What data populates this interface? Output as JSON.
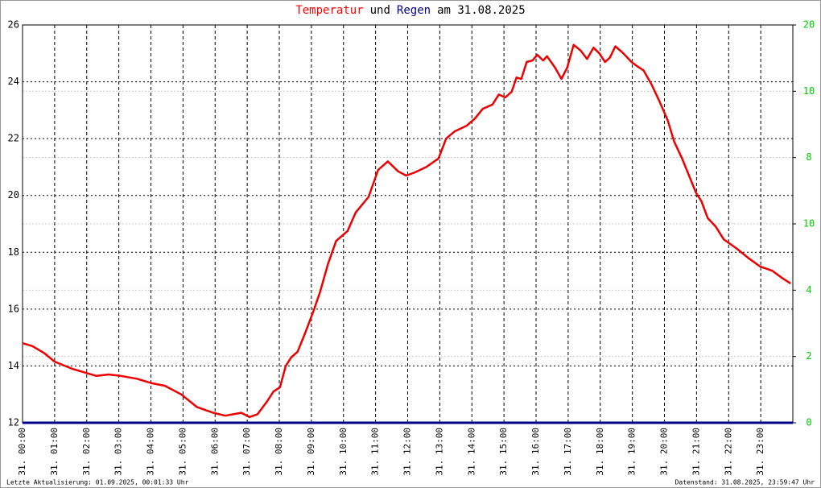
{
  "chart_data": {
    "type": "line",
    "title": [
      {
        "text": "Temperatur",
        "color": "#ff0000"
      },
      {
        "text": "und",
        "color": "#000000"
      },
      {
        "text": "Regen",
        "color": "#00008b"
      },
      {
        "text": "am 31.08.2025",
        "color": "#000000"
      }
    ],
    "xlim": [
      0,
      24
    ],
    "xticks": [
      {
        "value": 0,
        "label": "31. 00:00"
      },
      {
        "value": 1,
        "label": "31. 01:00"
      },
      {
        "value": 2,
        "label": "31. 02:00"
      },
      {
        "value": 3,
        "label": "31. 03:00"
      },
      {
        "value": 4,
        "label": "31. 04:00"
      },
      {
        "value": 5,
        "label": "31. 05:00"
      },
      {
        "value": 6,
        "label": "31. 06:00"
      },
      {
        "value": 7,
        "label": "31. 07:00"
      },
      {
        "value": 8,
        "label": "31. 08:00"
      },
      {
        "value": 9,
        "label": "31. 09:00"
      },
      {
        "value": 10,
        "label": "31. 10:00"
      },
      {
        "value": 11,
        "label": "31. 11:00"
      },
      {
        "value": 12,
        "label": "31. 12:00"
      },
      {
        "value": 13,
        "label": "31. 13:00"
      },
      {
        "value": 14,
        "label": "31. 14:00"
      },
      {
        "value": 15,
        "label": "31. 15:00"
      },
      {
        "value": 16,
        "label": "31. 16:00"
      },
      {
        "value": 17,
        "label": "31. 17:00"
      },
      {
        "value": 18,
        "label": "31. 18:00"
      },
      {
        "value": 19,
        "label": "31. 19:00"
      },
      {
        "value": 20,
        "label": "31. 20:00"
      },
      {
        "value": 21,
        "label": "31. 21:00"
      },
      {
        "value": 22,
        "label": "31. 22:00"
      },
      {
        "value": 23,
        "label": "31. 23:00"
      }
    ],
    "ylim": [
      12,
      26
    ],
    "yticks": [
      12,
      14,
      16,
      18,
      20,
      22,
      24,
      26
    ],
    "y2lim": [
      0,
      20
    ],
    "y2ticks": [
      0,
      {
        "value": 3.333,
        "label": "2"
      },
      {
        "value": 6.667,
        "label": "4"
      },
      10,
      {
        "value": 13.333,
        "label": "8"
      },
      {
        "value": 16.667,
        "label": "10"
      },
      20
    ],
    "y2color": "#00cc00",
    "grid": true,
    "series": [
      {
        "name": "Temperatur",
        "color": "#ee0000",
        "x": [
          0,
          0.3,
          0.68,
          1.0,
          1.55,
          2.0,
          2.3,
          2.68,
          3.06,
          3.56,
          4.0,
          4.44,
          4.94,
          5.44,
          5.94,
          6.32,
          6.57,
          6.82,
          7.07,
          7.32,
          7.62,
          7.82,
          8.02,
          8.2,
          8.37,
          8.57,
          8.82,
          9.07,
          9.27,
          9.52,
          9.77,
          10.13,
          10.38,
          10.78,
          11.08,
          11.38,
          11.7,
          11.95,
          12.2,
          12.58,
          12.96,
          13.2,
          13.46,
          13.83,
          14.09,
          14.34,
          14.64,
          14.84,
          15.04,
          15.24,
          15.39,
          15.54,
          15.71,
          15.89,
          16.04,
          16.22,
          16.34,
          16.59,
          16.79,
          16.97,
          17.17,
          17.39,
          17.59,
          17.79,
          17.97,
          18.15,
          18.3,
          18.47,
          18.72,
          18.97,
          19.15,
          19.35,
          19.6,
          19.85,
          20.1,
          20.3,
          20.55,
          20.73,
          20.98,
          21.15,
          21.35,
          21.6,
          21.85,
          22.23,
          22.61,
          22.98,
          23.36,
          23.66,
          23.93
        ],
        "values": [
          14.8,
          14.7,
          14.45,
          14.15,
          13.9,
          13.75,
          13.65,
          13.7,
          13.65,
          13.55,
          13.4,
          13.3,
          13.0,
          12.55,
          12.35,
          12.25,
          12.3,
          12.35,
          12.2,
          12.3,
          12.75,
          13.1,
          13.25,
          14.0,
          14.3,
          14.5,
          15.2,
          15.95,
          16.6,
          17.6,
          18.4,
          18.75,
          19.4,
          19.95,
          20.9,
          21.2,
          20.85,
          20.7,
          20.8,
          21.0,
          21.3,
          22.0,
          22.25,
          22.45,
          22.7,
          23.05,
          23.2,
          23.55,
          23.45,
          23.65,
          24.15,
          24.1,
          24.7,
          24.75,
          24.95,
          24.75,
          24.9,
          24.5,
          24.1,
          24.5,
          25.3,
          25.1,
          24.8,
          25.2,
          25.0,
          24.7,
          24.85,
          25.25,
          25.0,
          24.7,
          24.55,
          24.4,
          23.9,
          23.3,
          22.65,
          21.9,
          21.3,
          20.8,
          20.1,
          19.8,
          19.2,
          18.9,
          18.45,
          18.15,
          17.8,
          17.5,
          17.35,
          17.1,
          16.9
        ]
      },
      {
        "name": "Regen",
        "color": "#000088",
        "axis": "y2",
        "x": [
          0,
          24
        ],
        "values": [
          0,
          0
        ]
      }
    ],
    "footer_left": "Letzte Aktualisierung: 01.09.2025, 00:01:33 Uhr",
    "footer_right": "Datenstand: 31.08.2025, 23:59:47 Uhr"
  }
}
